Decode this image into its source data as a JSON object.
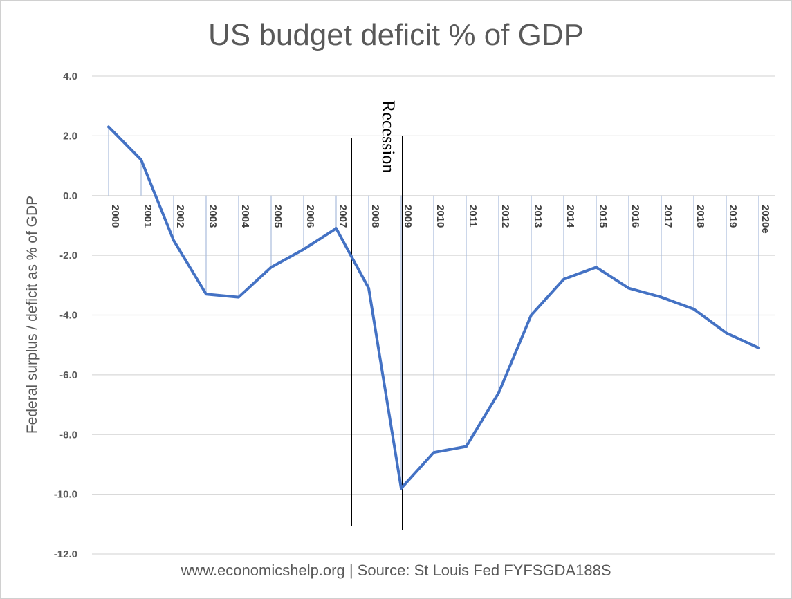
{
  "chart_data": {
    "type": "line",
    "title": "US budget deficit % of GDP",
    "ylabel": "Federal surplus / deficit as % of GDP",
    "xlabel": "",
    "categories": [
      "2000",
      "2001",
      "2002",
      "2003",
      "2004",
      "2005",
      "2006",
      "2007",
      "2008",
      "2009",
      "2010",
      "2011",
      "2012",
      "2013",
      "2014",
      "2015",
      "2016",
      "2017",
      "2018",
      "2019",
      "2020e"
    ],
    "series": [
      {
        "values": [
          2.3,
          1.2,
          -1.5,
          -3.3,
          -3.4,
          -2.4,
          -1.8,
          -1.1,
          -3.1,
          -9.8,
          -8.6,
          -8.4,
          -6.6,
          -4.0,
          -2.8,
          -2.4,
          -3.1,
          -3.4,
          -3.8,
          -4.6,
          -5.1
        ],
        "color": "#4472C4"
      }
    ],
    "ylim": [
      -12,
      4
    ],
    "yticks": [
      "4.0",
      "2.0",
      "0.0",
      "-2.0",
      "-4.0",
      "-6.0",
      "-8.0",
      "-10.0",
      "-12.0"
    ],
    "grid": true,
    "drop_line_color": "#A9BCDB",
    "annotations": [
      {
        "text": "Recession",
        "from": "2008",
        "to": "2009"
      }
    ],
    "source": "www.economicshelp.org  | Source: St Louis Fed FYFSGDA188S"
  }
}
